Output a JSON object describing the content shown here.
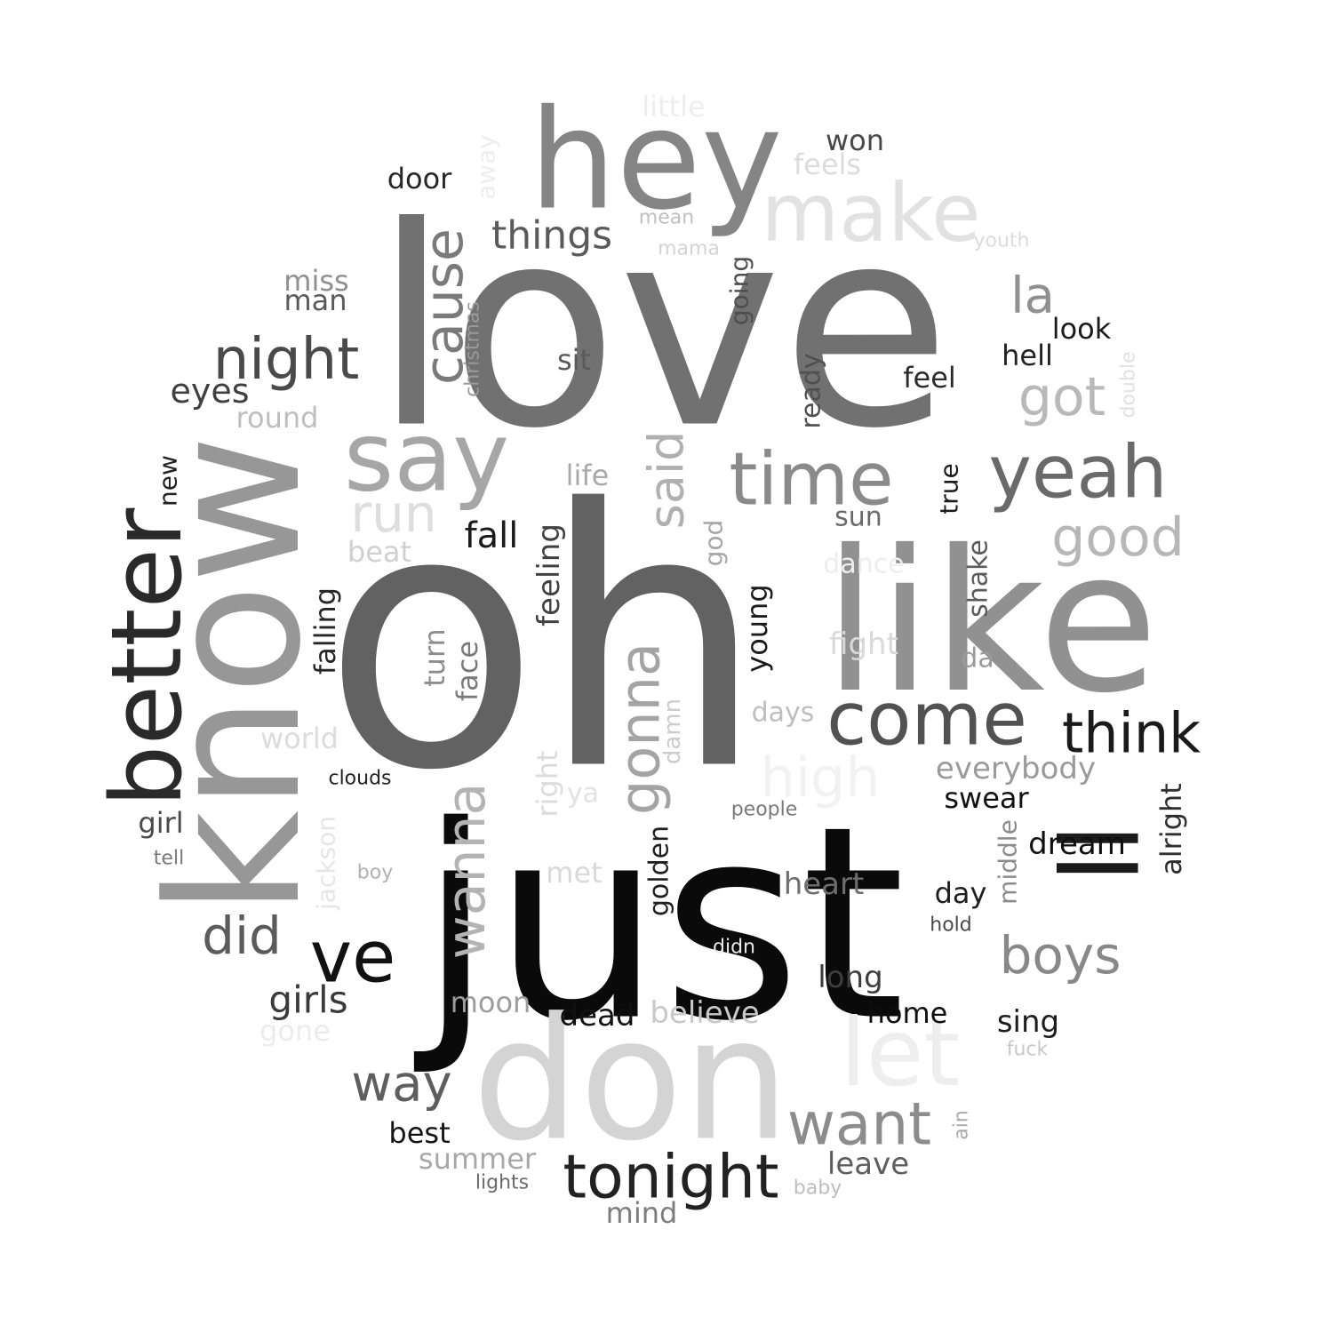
{
  "word_cloud": {
    "words": [
      {
        "text": "oh",
        "color": "#626262"
      },
      {
        "text": "love",
        "color": "#717171"
      },
      {
        "text": "just",
        "color": "#0a0a0a"
      },
      {
        "text": "know",
        "color": "#979797"
      },
      {
        "text": "like",
        "color": "#919191"
      },
      {
        "text": "don",
        "color": "#d4d4d4"
      },
      {
        "text": "hey",
        "color": "#858585"
      },
      {
        "text": "ll",
        "color": "#1c1c1c"
      },
      {
        "text": "better",
        "color": "#2a2a2a"
      },
      {
        "text": "say",
        "color": "#a6a6a6"
      },
      {
        "text": "make",
        "color": "#e2e2e2"
      },
      {
        "text": "come",
        "color": "#525252"
      },
      {
        "text": "let",
        "color": "#eeeeee"
      },
      {
        "text": "yeah",
        "color": "#6a6a6a"
      },
      {
        "text": "time",
        "color": "#8a8a8a"
      },
      {
        "text": "ve",
        "color": "#111111"
      },
      {
        "text": "gonna",
        "color": "#a4a4a4"
      },
      {
        "text": "tonight",
        "color": "#222222"
      },
      {
        "text": "want",
        "color": "#8c8c8c"
      },
      {
        "text": "wanna",
        "color": "#b3b3b3"
      },
      {
        "text": "night",
        "color": "#4a4a4a"
      },
      {
        "text": "think",
        "color": "#1a1a1a"
      },
      {
        "text": "cause",
        "color": "#7a7a7a"
      },
      {
        "text": "good",
        "color": "#b7b7b7"
      },
      {
        "text": "high",
        "color": "#f2f2f2"
      },
      {
        "text": "boys",
        "color": "#888888"
      },
      {
        "text": "said",
        "color": "#b0b0b0"
      },
      {
        "text": "run",
        "color": "#dedede"
      },
      {
        "text": "got",
        "color": "#b9b9b9"
      },
      {
        "text": "did",
        "color": "#5b5b5b"
      },
      {
        "text": "way",
        "color": "#5e5e5e"
      },
      {
        "text": "la",
        "color": "#909090"
      },
      {
        "text": "things",
        "color": "#5a5a5a"
      },
      {
        "text": "girls",
        "color": "#3a3a3a"
      },
      {
        "text": "fall",
        "color": "#1a1a1a"
      },
      {
        "text": "eyes",
        "color": "#404040"
      },
      {
        "text": "everybody",
        "color": "#9a9a9a"
      },
      {
        "text": "feeling",
        "color": "#404040"
      },
      {
        "text": "dream",
        "color": "#0f0f0f"
      },
      {
        "text": "heart",
        "color": "#6e6e6e"
      },
      {
        "text": "alright",
        "color": "#2f2f2f"
      },
      {
        "text": "dead",
        "color": "#111111"
      },
      {
        "text": "swear",
        "color": "#111111"
      },
      {
        "text": "believe",
        "color": "#c8c8c8"
      },
      {
        "text": "falling",
        "color": "#262626"
      },
      {
        "text": "golden",
        "color": "#1f1f1f"
      },
      {
        "text": "long",
        "color": "#3d3d3d"
      },
      {
        "text": "home",
        "color": "#0e0e0e"
      },
      {
        "text": "leave",
        "color": "#5e5e5e"
      },
      {
        "text": "summer",
        "color": "#a8a8a8"
      },
      {
        "text": "face",
        "color": "#7b7b7b"
      },
      {
        "text": "turn",
        "color": "#8d8d8d"
      },
      {
        "text": "round",
        "color": "#bebebe"
      },
      {
        "text": "sing",
        "color": "#1d1d1d"
      },
      {
        "text": "young",
        "color": "#1b1b1b"
      },
      {
        "text": "look",
        "color": "#1b1b1b"
      },
      {
        "text": "miss",
        "color": "#8f8f8f"
      },
      {
        "text": "man",
        "color": "#5a5a5a"
      },
      {
        "text": "fight",
        "color": "#d9d9d9"
      },
      {
        "text": "hell",
        "color": "#222222"
      },
      {
        "text": "mind",
        "color": "#7d7d7d"
      },
      {
        "text": "world",
        "color": "#dcdcdc"
      },
      {
        "text": "door",
        "color": "#262626"
      },
      {
        "text": "best",
        "color": "#141414"
      },
      {
        "text": "moon",
        "color": "#9d9d9d"
      },
      {
        "text": "won",
        "color": "#484848"
      },
      {
        "text": "life",
        "color": "#a9a9a9"
      },
      {
        "text": "right",
        "color": "#dcdcdc"
      },
      {
        "text": "feel",
        "color": "#2b2b2b"
      },
      {
        "text": "girl",
        "color": "#4a4a4a"
      },
      {
        "text": "met",
        "color": "#d9d9d9"
      },
      {
        "text": "shake",
        "color": "#5b5b5b"
      },
      {
        "text": "ready",
        "color": "#505050"
      },
      {
        "text": "day",
        "color": "#1e1e1e"
      },
      {
        "text": "middle",
        "color": "#8c8c8c"
      },
      {
        "text": "beat",
        "color": "#d0d0d0"
      },
      {
        "text": "days",
        "color": "#bebebe"
      },
      {
        "text": "sit",
        "color": "#5a5a5a"
      },
      {
        "text": "true",
        "color": "#1a1a1a"
      },
      {
        "text": "sun",
        "color": "#6a6a6a"
      },
      {
        "text": "da",
        "color": "#9b9b9b"
      },
      {
        "text": "damn",
        "color": "#cccccc"
      },
      {
        "text": "jackson",
        "color": "#e6e6e6"
      },
      {
        "text": "feels",
        "color": "#dcdcdc"
      },
      {
        "text": "new",
        "color": "#222222"
      },
      {
        "text": "god",
        "color": "#a6a6a6"
      },
      {
        "text": "going",
        "color": "#4e4e4e"
      },
      {
        "text": "dance",
        "color": "#eeeeee"
      },
      {
        "text": "gone",
        "color": "#ececec"
      },
      {
        "text": "little",
        "color": "#eeeeee"
      },
      {
        "text": "ya",
        "color": "#e2e2e2"
      },
      {
        "text": "away",
        "color": "#eeeeee"
      },
      {
        "text": "people",
        "color": "#7a7a7a"
      },
      {
        "text": "christmas",
        "color": "#9a9a9a"
      },
      {
        "text": "double",
        "color": "#e2e2e2"
      },
      {
        "text": "clouds",
        "color": "#222222"
      },
      {
        "text": "tell",
        "color": "#7a7a7a"
      },
      {
        "text": "boy",
        "color": "#b0b0b0"
      },
      {
        "text": "hold",
        "color": "#4a4a4a"
      },
      {
        "text": "didn",
        "color": "#eaeaea"
      },
      {
        "text": "lights",
        "color": "#6a6a6a"
      },
      {
        "text": "baby",
        "color": "#bebebe"
      },
      {
        "text": "ain",
        "color": "#aaaaaa"
      },
      {
        "text": "fuck",
        "color": "#c8c8c8"
      },
      {
        "text": "youth",
        "color": "#dcdcdc"
      },
      {
        "text": "mean",
        "color": "#c0c0c0"
      },
      {
        "text": "mama",
        "color": "#d4d4d4"
      }
    ]
  }
}
